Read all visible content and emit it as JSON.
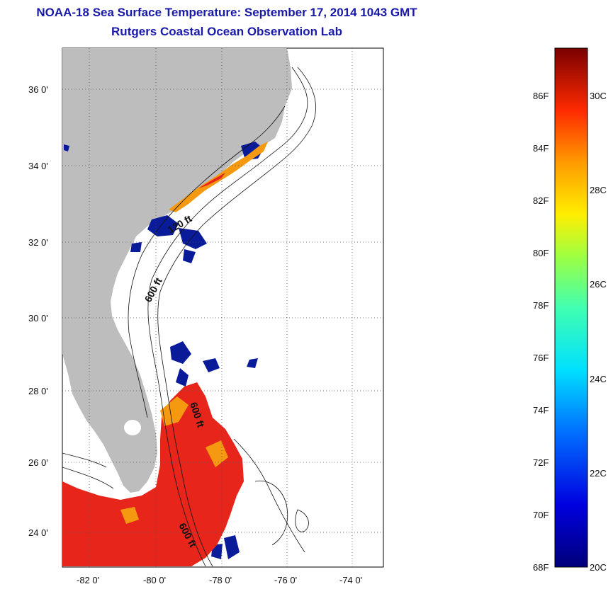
{
  "title_line1": "NOAA-18 Sea Surface Temperature:  September 17, 2014 1043 GMT",
  "title_line2": "Rutgers Coastal Ocean Observation Lab",
  "map": {
    "lat_labels": [
      "36 0'",
      "34 0'",
      "32 0'",
      "30 0'",
      "28 0'",
      "26 0'",
      "24 0'"
    ],
    "lon_labels": [
      "-82 0'",
      "-80 0'",
      "-78 0'",
      "-76 0'",
      "-74 0'"
    ],
    "contour_labels": [
      "120 ft",
      "600 ft",
      "600 ft"
    ],
    "colors": {
      "land": "#bdbdbd",
      "ocean": "#ffffff",
      "hot": "#e8251a",
      "warm": "#f59a10",
      "cold": "#0a1b9a"
    }
  },
  "colorbar": {
    "f_labels": [
      "86F",
      "84F",
      "82F",
      "80F",
      "78F",
      "76F",
      "74F",
      "72F",
      "70F",
      "68F"
    ],
    "c_labels": [
      "30C",
      "28C",
      "26C",
      "24C",
      "22C",
      "20C"
    ],
    "range_f": [
      68,
      88
    ],
    "range_c": [
      20,
      31
    ]
  }
}
